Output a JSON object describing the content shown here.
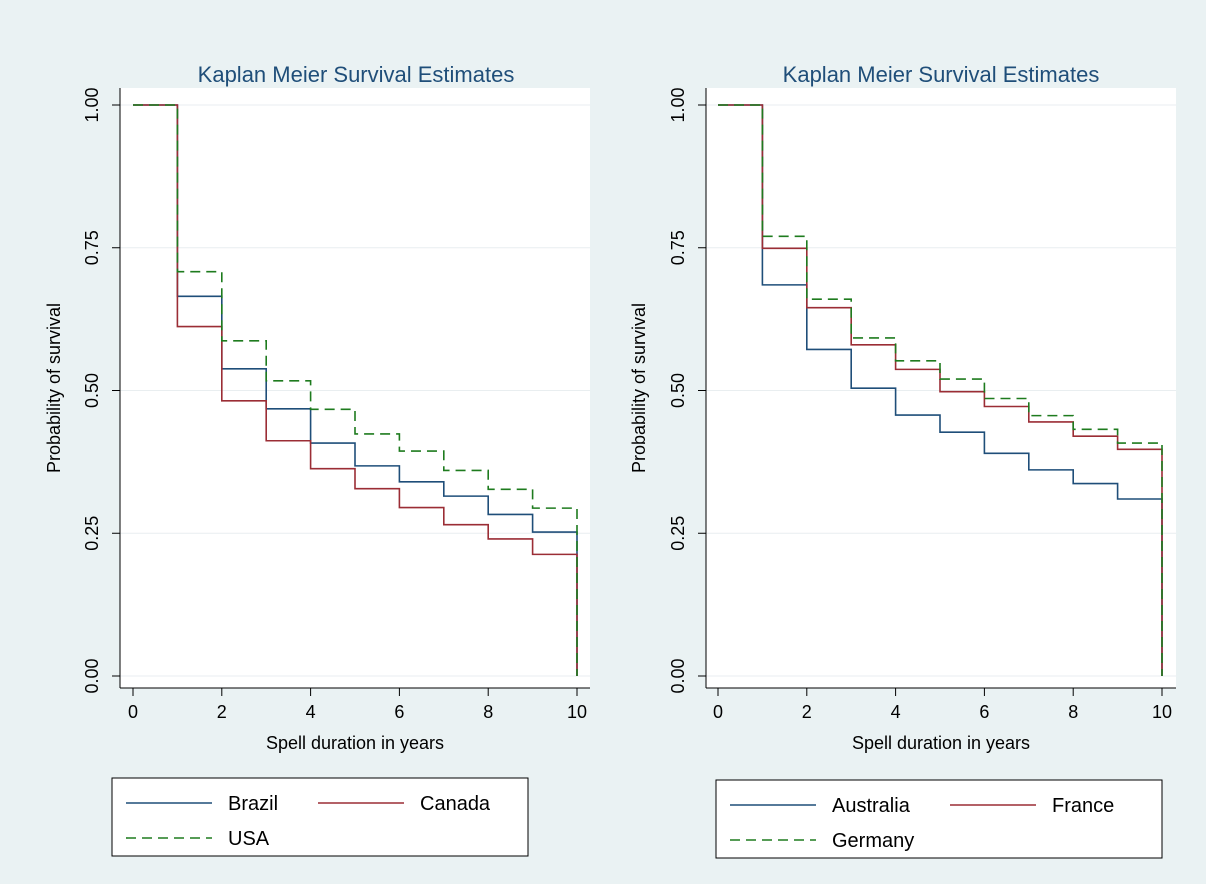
{
  "chart_data": [
    {
      "type": "line",
      "step": true,
      "title": "Kaplan Meier Survival Estimates",
      "xlabel": "Spell duration in years",
      "ylabel": "Probability of survival",
      "xlim": [
        0,
        10
      ],
      "ylim": [
        0,
        1
      ],
      "xticks": [
        "0",
        "2",
        "4",
        "6",
        "8",
        "10"
      ],
      "yticks": [
        "0.00",
        "0.25",
        "0.50",
        "0.75",
        "1.00"
      ],
      "grid": true,
      "legend_position": "bottom",
      "series": [
        {
          "name": "Brazil",
          "color": "#1f4e79",
          "dash": "solid",
          "x": [
            0,
            1,
            2,
            3,
            4,
            5,
            6,
            7,
            8,
            9,
            10
          ],
          "y": [
            1.0,
            0.665,
            0.538,
            0.468,
            0.408,
            0.368,
            0.34,
            0.315,
            0.283,
            0.252,
            0.0
          ]
        },
        {
          "name": "Canada",
          "color": "#9b2d35",
          "dash": "solid",
          "x": [
            0,
            1,
            2,
            3,
            4,
            5,
            6,
            7,
            8,
            9,
            10
          ],
          "y": [
            1.0,
            0.612,
            0.482,
            0.412,
            0.363,
            0.328,
            0.295,
            0.265,
            0.24,
            0.213,
            0.0
          ]
        },
        {
          "name": "USA",
          "color": "#1e7b1e",
          "dash": "dashed",
          "x": [
            0,
            1,
            2,
            3,
            4,
            5,
            6,
            7,
            8,
            9,
            10
          ],
          "y": [
            1.0,
            0.708,
            0.587,
            0.517,
            0.467,
            0.424,
            0.394,
            0.36,
            0.327,
            0.294,
            0.0
          ]
        }
      ]
    },
    {
      "type": "line",
      "step": true,
      "title": "Kaplan Meier Survival Estimates",
      "xlabel": "Spell duration in years",
      "ylabel": "Probability of survival",
      "xlim": [
        0,
        10
      ],
      "ylim": [
        0,
        1
      ],
      "xticks": [
        "0",
        "2",
        "4",
        "6",
        "8",
        "10"
      ],
      "yticks": [
        "0.00",
        "0.25",
        "0.50",
        "0.75",
        "1.00"
      ],
      "grid": true,
      "legend_position": "bottom",
      "series": [
        {
          "name": "Australia",
          "color": "#1f4e79",
          "dash": "solid",
          "x": [
            0,
            1,
            2,
            3,
            4,
            5,
            6,
            7,
            8,
            9,
            10
          ],
          "y": [
            1.0,
            0.685,
            0.572,
            0.504,
            0.457,
            0.427,
            0.39,
            0.361,
            0.337,
            0.31,
            0.0
          ]
        },
        {
          "name": "France",
          "color": "#9b2d35",
          "dash": "solid",
          "x": [
            0,
            1,
            2,
            3,
            4,
            5,
            6,
            7,
            8,
            9,
            10
          ],
          "y": [
            1.0,
            0.749,
            0.645,
            0.58,
            0.537,
            0.498,
            0.472,
            0.445,
            0.42,
            0.397,
            0.0
          ]
        },
        {
          "name": "Germany",
          "color": "#1e7b1e",
          "dash": "dashed",
          "x": [
            0,
            1,
            2,
            3,
            4,
            5,
            6,
            7,
            8,
            9,
            10
          ],
          "y": [
            1.0,
            0.77,
            0.66,
            0.592,
            0.552,
            0.52,
            0.486,
            0.456,
            0.432,
            0.408,
            0.0
          ]
        }
      ]
    }
  ],
  "colors": {
    "background": "#eaf2f3",
    "plot_background": "#ffffff",
    "gridline": "#e9eef0",
    "axis": "#000000"
  }
}
